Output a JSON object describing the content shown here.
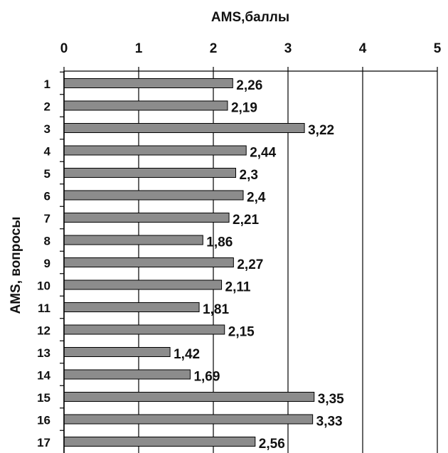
{
  "chart_data": {
    "type": "bar",
    "orientation": "horizontal",
    "title": "",
    "xlabel": "AMS,баллы",
    "ylabel": "AMS, вопросы",
    "xlim": [
      0,
      5
    ],
    "xticks": [
      "0",
      "1",
      "2",
      "3",
      "4",
      "5"
    ],
    "x_axis_position": "top",
    "grid": "vertical lines at each integer",
    "categories": [
      "1",
      "2",
      "3",
      "4",
      "5",
      "6",
      "7",
      "8",
      "9",
      "10",
      "11",
      "12",
      "13",
      "14",
      "15",
      "16",
      "17"
    ],
    "values": [
      2.26,
      2.19,
      3.22,
      2.44,
      2.3,
      2.4,
      2.21,
      1.86,
      2.27,
      2.11,
      1.81,
      2.15,
      1.42,
      1.69,
      3.35,
      3.33,
      2.56
    ],
    "data_labels": [
      "2,26",
      "2,19",
      "3,22",
      "2,44",
      "2,3",
      "2,4",
      "2,21",
      "1,86",
      "2,27",
      "2,11",
      "1,81",
      "2,15",
      "1,42",
      "1,69",
      "3,35",
      "3,33",
      "2,56"
    ],
    "bar_color": "#8c8c8c",
    "bar_border_color": "#000000"
  }
}
